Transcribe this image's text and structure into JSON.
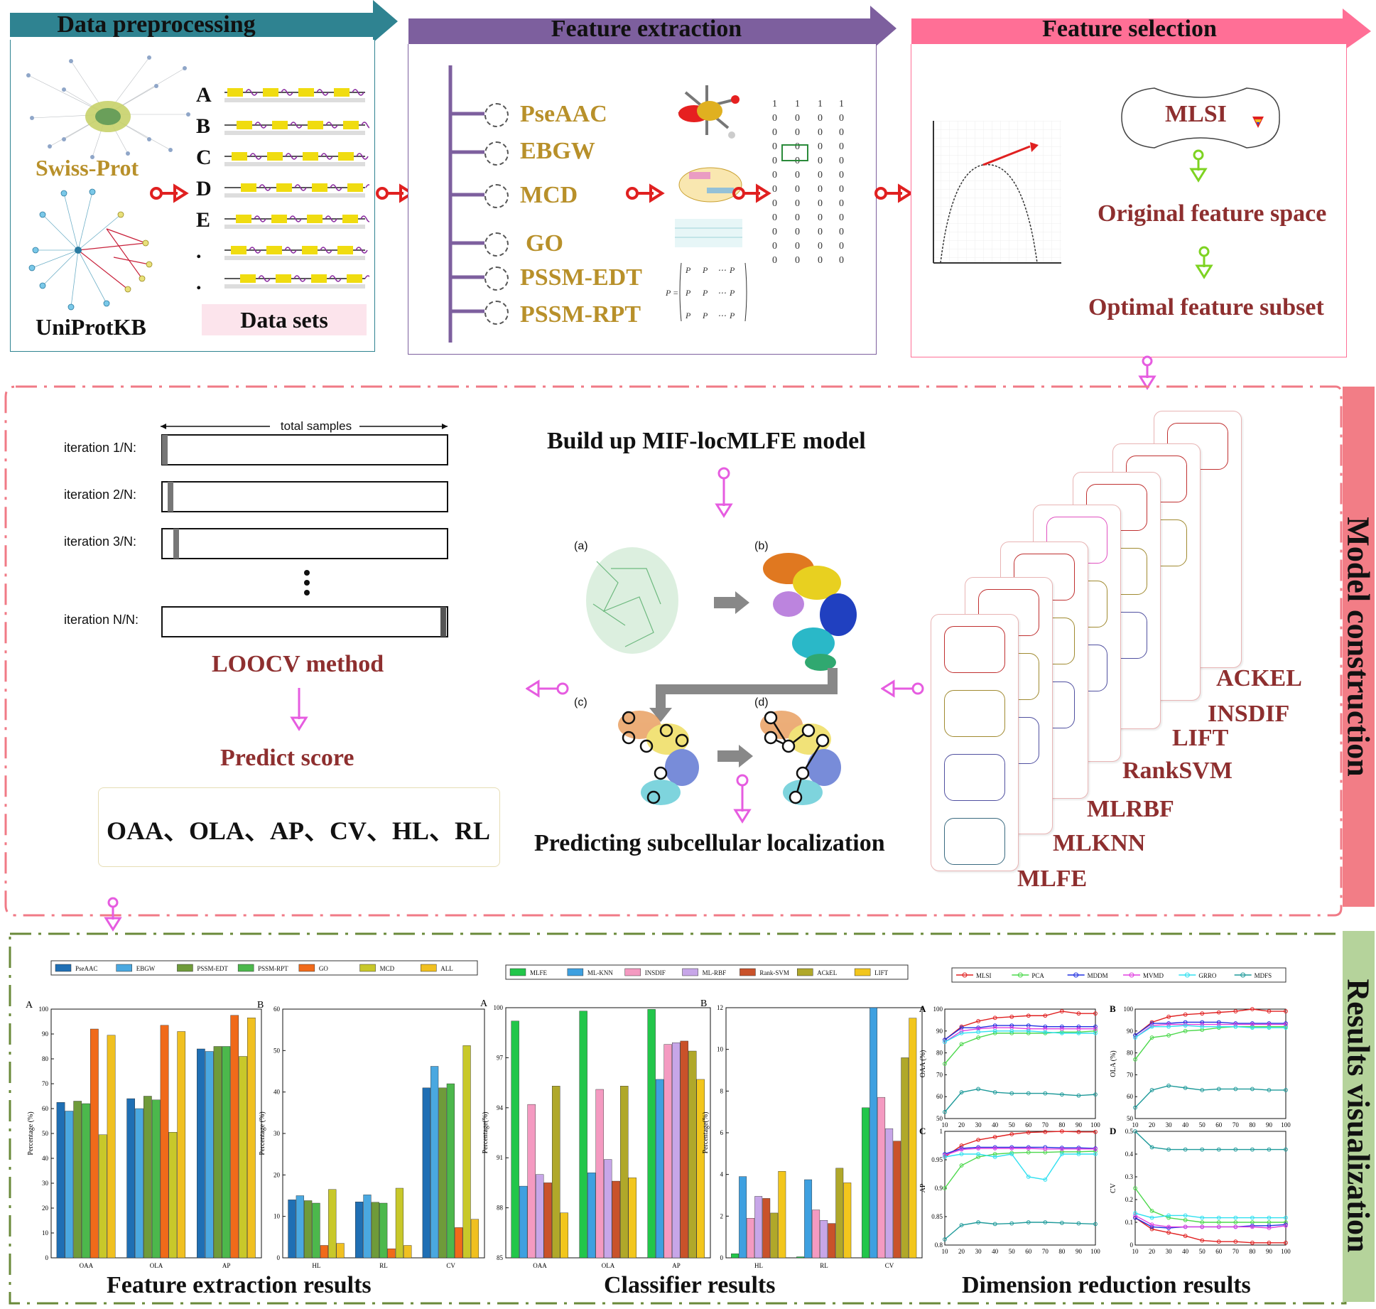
{
  "colors": {
    "teal_header": "#2f8391",
    "purple_header": "#7d5f9e",
    "pink_header": "#ff6f96",
    "gold_text": "#b8902a",
    "maroon_text": "#8e2f2f",
    "red_connector": "#e02020",
    "magenta_connector": "#e65ce0",
    "green_connector": "#7ed321",
    "model_side": "#f27d86",
    "results_side": "#b5d39b"
  },
  "stages": {
    "preprocessing": {
      "title": "Data preprocessing",
      "swissprot": "Swiss-Prot",
      "uniprot": "UniProtKB",
      "dataset_letters": [
        "A",
        "B",
        "C",
        "D",
        "E",
        ".",
        "."
      ],
      "datasets_label": "Data sets"
    },
    "extraction": {
      "title": "Feature extraction",
      "features": [
        "PseAAC",
        "EBGW",
        "MCD",
        "GO",
        "PSSM-EDT",
        "PSSM-RPT"
      ]
    },
    "selection": {
      "title": "Feature selection",
      "mlsi": "MLSI",
      "original_space": "Original feature space",
      "optimal_subset": "Optimal feature subset"
    }
  },
  "model": {
    "side_label": "Model construction",
    "loocv": {
      "total_samples": "total samples",
      "iterations": [
        "iteration 1/N:",
        "iteration 2/N:",
        "iteration 3/N:",
        "iteration N/N:"
      ],
      "label": "LOOCV method"
    },
    "build_label": "Build up MIF-locMLFE model",
    "panel_labels": [
      "(a)",
      "(b)",
      "(c)",
      "(d)"
    ],
    "predict_score": "Predict score",
    "metrics": "OAA、OLA、AP、CV、HL、RL",
    "predicting": "Predicting subcellular localization",
    "classifiers": [
      "MLFE",
      "MLKNN",
      "MLRBF",
      "RankSVM",
      "LIFT",
      "INSDIF",
      "ACKEL"
    ]
  },
  "results": {
    "side_label": "Results visualization",
    "captions": [
      "Feature extraction results",
      "Classifier results",
      "Dimension reduction results"
    ]
  },
  "chart_data": [
    {
      "type": "bar",
      "panel": "A",
      "ylabel": "Percentage (%)",
      "ylim": [
        0,
        100
      ],
      "categories": [
        "OAA",
        "OLA",
        "AP"
      ],
      "series": [
        {
          "name": "PseAAC",
          "color": "#1f6fb4",
          "values": [
            62.5,
            64,
            84
          ]
        },
        {
          "name": "EBGW",
          "color": "#4aa8e0",
          "values": [
            59,
            60,
            83
          ]
        },
        {
          "name": "PSSM-EDT",
          "color": "#6f9b3a",
          "values": [
            63,
            65,
            85
          ]
        },
        {
          "name": "PSSM-RPT",
          "color": "#4cb84c",
          "values": [
            62,
            63.5,
            85
          ]
        },
        {
          "name": "GO",
          "color": "#f06a1a",
          "values": [
            92,
            93.5,
            97.5
          ]
        },
        {
          "name": "MCD",
          "color": "#c8c82a",
          "values": [
            49.5,
            50.5,
            81
          ]
        },
        {
          "name": "ALL",
          "color": "#f0c020",
          "values": [
            89.5,
            91,
            96.5
          ]
        }
      ]
    },
    {
      "type": "bar",
      "panel": "B",
      "ylabel": "Percentage (%)",
      "ylim": [
        0,
        60
      ],
      "categories": [
        "HL",
        "RL",
        "CV"
      ],
      "series": [
        {
          "name": "PseAAC",
          "color": "#1f6fb4",
          "values": [
            14,
            13.5,
            41
          ]
        },
        {
          "name": "EBGW",
          "color": "#4aa8e0",
          "values": [
            15,
            15.2,
            46.2
          ]
        },
        {
          "name": "PSSM-EDT",
          "color": "#6f9b3a",
          "values": [
            13.8,
            13.4,
            41
          ]
        },
        {
          "name": "PSSM-RPT",
          "color": "#4cb84c",
          "values": [
            13.2,
            13.2,
            42
          ]
        },
        {
          "name": "GO",
          "color": "#f06a1a",
          "values": [
            3,
            2.2,
            7.3
          ]
        },
        {
          "name": "MCD",
          "color": "#c8c82a",
          "values": [
            16.5,
            16.8,
            51.2
          ]
        },
        {
          "name": "ALL",
          "color": "#f0c020",
          "values": [
            3.5,
            3,
            9.3
          ]
        }
      ]
    },
    {
      "type": "bar",
      "panel": "A",
      "ylabel": "Percentage(%)",
      "ylim": [
        85,
        100
      ],
      "yticks": [
        85,
        88,
        91,
        94,
        97,
        100
      ],
      "categories": [
        "OAA",
        "OLA",
        "AP"
      ],
      "series": [
        {
          "name": "MLFE",
          "color": "#22c64a",
          "values": [
            99.2,
            99.8,
            99.9
          ]
        },
        {
          "name": "ML-KNN",
          "color": "#3ea0e0",
          "values": [
            89.3,
            90.1,
            95.7
          ]
        },
        {
          "name": "INSDIF",
          "color": "#f49ac1",
          "values": [
            94.2,
            95.1,
            97.8
          ]
        },
        {
          "name": "ML-RBF",
          "color": "#c7a6e8",
          "values": [
            90,
            90.9,
            97.9
          ]
        },
        {
          "name": "Rank-SVM",
          "color": "#c9522a",
          "values": [
            89.5,
            89.6,
            98
          ]
        },
        {
          "name": "ACkEL",
          "color": "#b0a82a",
          "values": [
            95.3,
            95.3,
            97.4
          ]
        },
        {
          "name": "LIFT",
          "color": "#f2c61c",
          "values": [
            87.7,
            89.8,
            95.7
          ]
        }
      ]
    },
    {
      "type": "bar",
      "panel": "B",
      "ylabel": "Percentage(%)",
      "ylim": [
        0,
        12
      ],
      "categories": [
        "HL",
        "RL",
        "CV"
      ],
      "series": [
        {
          "name": "MLFE",
          "color": "#22c64a",
          "values": [
            0.2,
            0.05,
            7.2
          ]
        },
        {
          "name": "ML-KNN",
          "color": "#3ea0e0",
          "values": [
            3.9,
            3.75,
            12
          ]
        },
        {
          "name": "INSDIF",
          "color": "#f49ac1",
          "values": [
            1.9,
            2.3,
            7.7
          ]
        },
        {
          "name": "ML-RBF",
          "color": "#c7a6e8",
          "values": [
            2.95,
            1.8,
            6.2
          ]
        },
        {
          "name": "Rank-SVM",
          "color": "#c9522a",
          "values": [
            2.85,
            1.65,
            5.6
          ]
        },
        {
          "name": "ACkEL",
          "color": "#b0a82a",
          "values": [
            2.15,
            4.3,
            9.6
          ]
        },
        {
          "name": "LIFT",
          "color": "#f2c61c",
          "values": [
            4.15,
            3.6,
            11.5
          ]
        }
      ]
    },
    {
      "type": "line",
      "panel": "A",
      "ylabel": "OAA (%)",
      "ylim": [
        50,
        100
      ],
      "yticks": [
        50,
        60,
        70,
        80,
        90,
        100
      ],
      "x": [
        10,
        20,
        30,
        40,
        50,
        60,
        70,
        80,
        90,
        100
      ],
      "series": [
        {
          "name": "MLSI",
          "color": "#e02020",
          "values": [
            86,
            92,
            94.5,
            96,
            96.5,
            97,
            97,
            99,
            98,
            98
          ]
        },
        {
          "name": "PCA",
          "color": "#4cd84c",
          "values": [
            75,
            84,
            87,
            89,
            89,
            89,
            89,
            89.5,
            89.5,
            90
          ]
        },
        {
          "name": "MDDM",
          "color": "#2030e0",
          "values": [
            86,
            91.5,
            91.5,
            92.5,
            92.5,
            92.5,
            92,
            92,
            92,
            92
          ]
        },
        {
          "name": "MVMD",
          "color": "#e040e0",
          "values": [
            85,
            90,
            91,
            91.5,
            91.5,
            91,
            91,
            91,
            91,
            91
          ]
        },
        {
          "name": "GRRO",
          "color": "#30e0f0",
          "values": [
            85,
            89,
            89.5,
            90,
            90,
            90,
            89.5,
            89,
            89,
            89
          ]
        },
        {
          "name": "MDFS",
          "color": "#1e9a9a",
          "values": [
            53,
            62,
            63.5,
            62,
            61.5,
            61.5,
            61.5,
            61,
            60.5,
            61
          ]
        }
      ]
    },
    {
      "type": "line",
      "panel": "B",
      "ylabel": "OLA (%)",
      "ylim": [
        50,
        100
      ],
      "yticks": [
        50,
        60,
        70,
        80,
        90,
        100
      ],
      "x": [
        10,
        20,
        30,
        40,
        50,
        60,
        70,
        80,
        90,
        100
      ],
      "series": [
        {
          "name": "MLSI",
          "color": "#e02020",
          "values": [
            88,
            94,
            96.5,
            97.5,
            98,
            98.5,
            99,
            100,
            99,
            99
          ]
        },
        {
          "name": "PCA",
          "color": "#4cd84c",
          "values": [
            77,
            87,
            88,
            90,
            90.5,
            91.5,
            92,
            92,
            92,
            92
          ]
        },
        {
          "name": "MDDM",
          "color": "#2030e0",
          "values": [
            88,
            93.5,
            93.5,
            94,
            94,
            94,
            93.5,
            93.5,
            93.5,
            93.5
          ]
        },
        {
          "name": "MVMD",
          "color": "#e040e0",
          "values": [
            87,
            92.5,
            93,
            93,
            93,
            93,
            93,
            93,
            93,
            93
          ]
        },
        {
          "name": "GRRO",
          "color": "#30e0f0",
          "values": [
            87,
            92,
            92,
            92.5,
            92,
            92,
            92,
            91.5,
            91.5,
            91.5
          ]
        },
        {
          "name": "MDFS",
          "color": "#1e9a9a",
          "values": [
            55,
            63,
            65,
            64,
            63,
            63.5,
            63.5,
            63.5,
            63,
            63
          ]
        }
      ]
    },
    {
      "type": "line",
      "panel": "C",
      "ylabel": "AP",
      "ylim": [
        0.8,
        1
      ],
      "yticks": [
        0.8,
        0.85,
        0.9,
        0.95,
        1
      ],
      "x": [
        10,
        20,
        30,
        40,
        50,
        60,
        70,
        80,
        90,
        100
      ],
      "series": [
        {
          "name": "MLSI",
          "color": "#e02020",
          "values": [
            0.955,
            0.975,
            0.985,
            0.99,
            0.995,
            0.998,
            0.999,
            1.0,
            0.999,
            0.999
          ]
        },
        {
          "name": "PCA",
          "color": "#4cd84c",
          "values": [
            0.9,
            0.94,
            0.955,
            0.96,
            0.962,
            0.963,
            0.963,
            0.964,
            0.964,
            0.965
          ]
        },
        {
          "name": "MDDM",
          "color": "#2030e0",
          "values": [
            0.96,
            0.97,
            0.972,
            0.972,
            0.972,
            0.972,
            0.972,
            0.971,
            0.971,
            0.97
          ]
        },
        {
          "name": "MVMD",
          "color": "#e040e0",
          "values": [
            0.958,
            0.968,
            0.97,
            0.97,
            0.97,
            0.97,
            0.969,
            0.969,
            0.969,
            0.969
          ]
        },
        {
          "name": "GRRO",
          "color": "#30e0f0",
          "values": [
            0.955,
            0.96,
            0.96,
            0.955,
            0.96,
            0.92,
            0.915,
            0.96,
            0.96,
            0.96
          ]
        },
        {
          "name": "MDFS",
          "color": "#1e9a9a",
          "values": [
            0.81,
            0.835,
            0.84,
            0.837,
            0.838,
            0.84,
            0.84,
            0.839,
            0.838,
            0.837
          ]
        }
      ]
    },
    {
      "type": "line",
      "panel": "D",
      "ylabel": "CV",
      "ylim": [
        0,
        0.5
      ],
      "yticks": [
        0,
        0.1,
        0.2,
        0.3,
        0.4,
        0.5
      ],
      "x": [
        10,
        20,
        30,
        40,
        50,
        60,
        70,
        80,
        90,
        100
      ],
      "series": [
        {
          "name": "MLSI",
          "color": "#e02020",
          "values": [
            0.12,
            0.07,
            0.055,
            0.04,
            0.02,
            0.015,
            0.015,
            0.01,
            0.01,
            0.01
          ]
        },
        {
          "name": "PCA",
          "color": "#4cd84c",
          "values": [
            0.25,
            0.15,
            0.12,
            0.11,
            0.1,
            0.1,
            0.1,
            0.1,
            0.1,
            0.1
          ]
        },
        {
          "name": "MDDM",
          "color": "#2030e0",
          "values": [
            0.12,
            0.08,
            0.075,
            0.08,
            0.08,
            0.08,
            0.08,
            0.085,
            0.085,
            0.09
          ]
        },
        {
          "name": "MVMD",
          "color": "#e040e0",
          "values": [
            0.13,
            0.09,
            0.08,
            0.08,
            0.08,
            0.08,
            0.08,
            0.08,
            0.075,
            0.085
          ]
        },
        {
          "name": "GRRO",
          "color": "#30e0f0",
          "values": [
            0.14,
            0.12,
            0.13,
            0.13,
            0.12,
            0.12,
            0.12,
            0.12,
            0.12,
            0.12
          ]
        },
        {
          "name": "MDFS",
          "color": "#1e9a9a",
          "values": [
            0.5,
            0.43,
            0.42,
            0.42,
            0.42,
            0.42,
            0.42,
            0.42,
            0.42,
            0.42
          ]
        }
      ]
    }
  ]
}
